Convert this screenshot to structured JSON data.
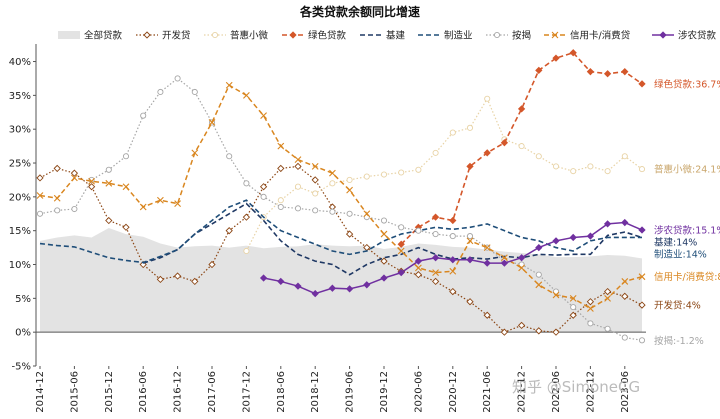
{
  "chart_data": {
    "type": "line",
    "title": "各类贷款余额同比增速",
    "ylim": [
      -5,
      42
    ],
    "y_ticks": [
      -5,
      0,
      5,
      10,
      15,
      20,
      25,
      30,
      35,
      40
    ],
    "y_tick_labels": [
      "-5%",
      "0%",
      "5%",
      "10%",
      "15%",
      "20%",
      "25%",
      "30%",
      "35%",
      "40%"
    ],
    "x": [
      "2014-12",
      "2015-03",
      "2015-06",
      "2015-09",
      "2015-12",
      "2016-03",
      "2016-06",
      "2016-09",
      "2016-12",
      "2017-03",
      "2017-06",
      "2017-09",
      "2017-12",
      "2018-03",
      "2018-06",
      "2018-09",
      "2018-12",
      "2019-03",
      "2019-06",
      "2019-09",
      "2019-12",
      "2020-03",
      "2020-06",
      "2020-09",
      "2020-12",
      "2021-03",
      "2021-06",
      "2021-09",
      "2021-12",
      "2022-03",
      "2022-06",
      "2022-09",
      "2022-12",
      "2023-03",
      "2023-06",
      "2023-09"
    ],
    "x_tick_labels": [
      "2014-12",
      "2015-06",
      "2015-12",
      "2016-06",
      "2016-12",
      "2017-06",
      "2017-12",
      "2018-06",
      "2018-12",
      "2019-06",
      "2019-12",
      "2020-06",
      "2020-12",
      "2021-06",
      "2021-12",
      "2022-06",
      "2022-12",
      "2023-06"
    ],
    "grid": false,
    "legend_position": "top",
    "series": [
      {
        "name": "全部贷款",
        "type": "area",
        "color": "#e3e3e3",
        "values": [
          13.5,
          14.0,
          14.3,
          14.0,
          15.4,
          14.5,
          14.1,
          13.1,
          12.5,
          12.7,
          12.8,
          12.5,
          12.8,
          12.4,
          12.6,
          12.7,
          13.0,
          12.8,
          12.7,
          12.8,
          12.3,
          12.6,
          13.1,
          12.9,
          12.6,
          12.5,
          12.2,
          11.9,
          11.7,
          11.5,
          11.1,
          11.1,
          11.2,
          11.4,
          11.3,
          10.9
        ]
      },
      {
        "name": "开发贷",
        "style": "dotted-diamond",
        "color": "#8b4513",
        "values": [
          22.8,
          24.2,
          23.5,
          21.5,
          16.5,
          15.5,
          10.0,
          7.8,
          8.3,
          7.5,
          10.0,
          15.0,
          17.0,
          21.5,
          24.2,
          24.5,
          22.5,
          18.5,
          14.5,
          12.5,
          10.5,
          9.0,
          8.5,
          7.5,
          6.0,
          4.5,
          2.5,
          0.0,
          1.0,
          0.2,
          0.0,
          2.5,
          4.5,
          6.0,
          5.3,
          4.0
        ],
        "end_label": "开发贷:4%"
      },
      {
        "name": "普惠小微",
        "style": "dotted-light",
        "color": "#e8d3a6",
        "values": [
          null,
          null,
          null,
          null,
          null,
          null,
          null,
          null,
          null,
          null,
          null,
          null,
          12.0,
          17.0,
          19.5,
          21.5,
          20.5,
          22.0,
          22.5,
          23.0,
          23.3,
          23.6,
          24.0,
          26.5,
          29.5,
          30.2,
          34.5,
          28.5,
          27.5,
          26.0,
          24.5,
          23.8,
          24.5,
          23.8,
          26.0,
          24.1
        ],
        "end_label": "普惠小微:24.1%"
      },
      {
        "name": "绿色贷款",
        "style": "dash-diamond",
        "color": "#d4572a",
        "values": [
          null,
          null,
          null,
          null,
          null,
          null,
          null,
          null,
          null,
          null,
          null,
          null,
          null,
          null,
          null,
          null,
          null,
          null,
          null,
          null,
          null,
          13.0,
          15.5,
          17.0,
          16.5,
          24.5,
          26.5,
          28.0,
          33.0,
          38.7,
          40.5,
          41.3,
          38.5,
          38.2,
          38.5,
          36.7
        ],
        "end_label": "绿色贷款:36.7%"
      },
      {
        "name": "基建",
        "style": "dashed",
        "color": "#1f3864",
        "values": [
          null,
          null,
          null,
          null,
          null,
          null,
          10.2,
          11.0,
          12.2,
          14.5,
          16.0,
          17.5,
          19.0,
          16.5,
          13.5,
          11.5,
          10.5,
          10.0,
          8.5,
          10.0,
          11.0,
          11.5,
          12.5,
          11.5,
          10.8,
          11.0,
          10.8,
          11.2,
          11.0,
          11.5,
          11.4,
          11.5,
          11.5,
          14.3,
          14.8,
          14.0
        ],
        "end_label": "基建:14%"
      },
      {
        "name": "制造业",
        "style": "dashed",
        "color": "#1f4e79",
        "values": [
          13.1,
          12.8,
          12.6,
          11.8,
          11.0,
          10.6,
          10.3,
          11.2,
          12.2,
          14.5,
          16.5,
          18.5,
          19.5,
          17.0,
          15.0,
          14.0,
          13.0,
          12.0,
          11.5,
          12.0,
          13.5,
          14.5,
          15.0,
          15.5,
          15.2,
          15.5,
          16.0,
          15.0,
          14.0,
          13.5,
          12.5,
          12.0,
          13.5,
          14.0,
          14.0,
          14.0
        ],
        "end_label": "制造业:14%"
      },
      {
        "name": "按揭",
        "style": "dotted-circle",
        "color": "#a6a6a6",
        "values": [
          17.5,
          18.0,
          18.2,
          22.5,
          24.0,
          26.0,
          32.0,
          35.5,
          37.5,
          35.5,
          31.0,
          26.0,
          22.0,
          20.0,
          18.5,
          18.3,
          18.0,
          17.8,
          17.5,
          17.0,
          16.5,
          15.5,
          15.0,
          14.5,
          14.2,
          14.2,
          12.5,
          10.5,
          10.0,
          8.5,
          6.0,
          3.7,
          1.3,
          0.5,
          -0.8,
          -1.2
        ],
        "end_label": "按揭:-1.2%"
      },
      {
        "name": "信用卡/消费贷",
        "style": "dash-cross",
        "color": "#d9861f",
        "values": [
          20.2,
          19.8,
          22.8,
          22.3,
          22.0,
          21.5,
          18.5,
          19.5,
          19.0,
          26.5,
          31.0,
          36.5,
          35.0,
          32.0,
          27.5,
          25.5,
          24.5,
          23.5,
          21.0,
          17.5,
          14.5,
          12.0,
          9.5,
          8.8,
          9.0,
          13.5,
          12.5,
          11.0,
          9.5,
          7.0,
          5.5,
          5.0,
          3.5,
          5.0,
          7.5,
          8.2
        ],
        "end_label": "信用卡/消费贷:8.2%"
      },
      {
        "name": "涉农贷款",
        "style": "solid-diamond",
        "color": "#7030a0",
        "values": [
          null,
          null,
          null,
          null,
          null,
          null,
          null,
          null,
          null,
          null,
          null,
          null,
          null,
          8.0,
          7.5,
          6.8,
          5.7,
          6.5,
          6.4,
          7.0,
          8.0,
          8.8,
          10.5,
          11.0,
          10.7,
          10.7,
          10.2,
          10.2,
          11.0,
          12.5,
          13.5,
          14.0,
          14.2,
          16.0,
          16.2,
          15.1
        ],
        "end_label": "涉农贷款:15.1%"
      }
    ]
  },
  "watermark": "知乎 @SimoneCG"
}
